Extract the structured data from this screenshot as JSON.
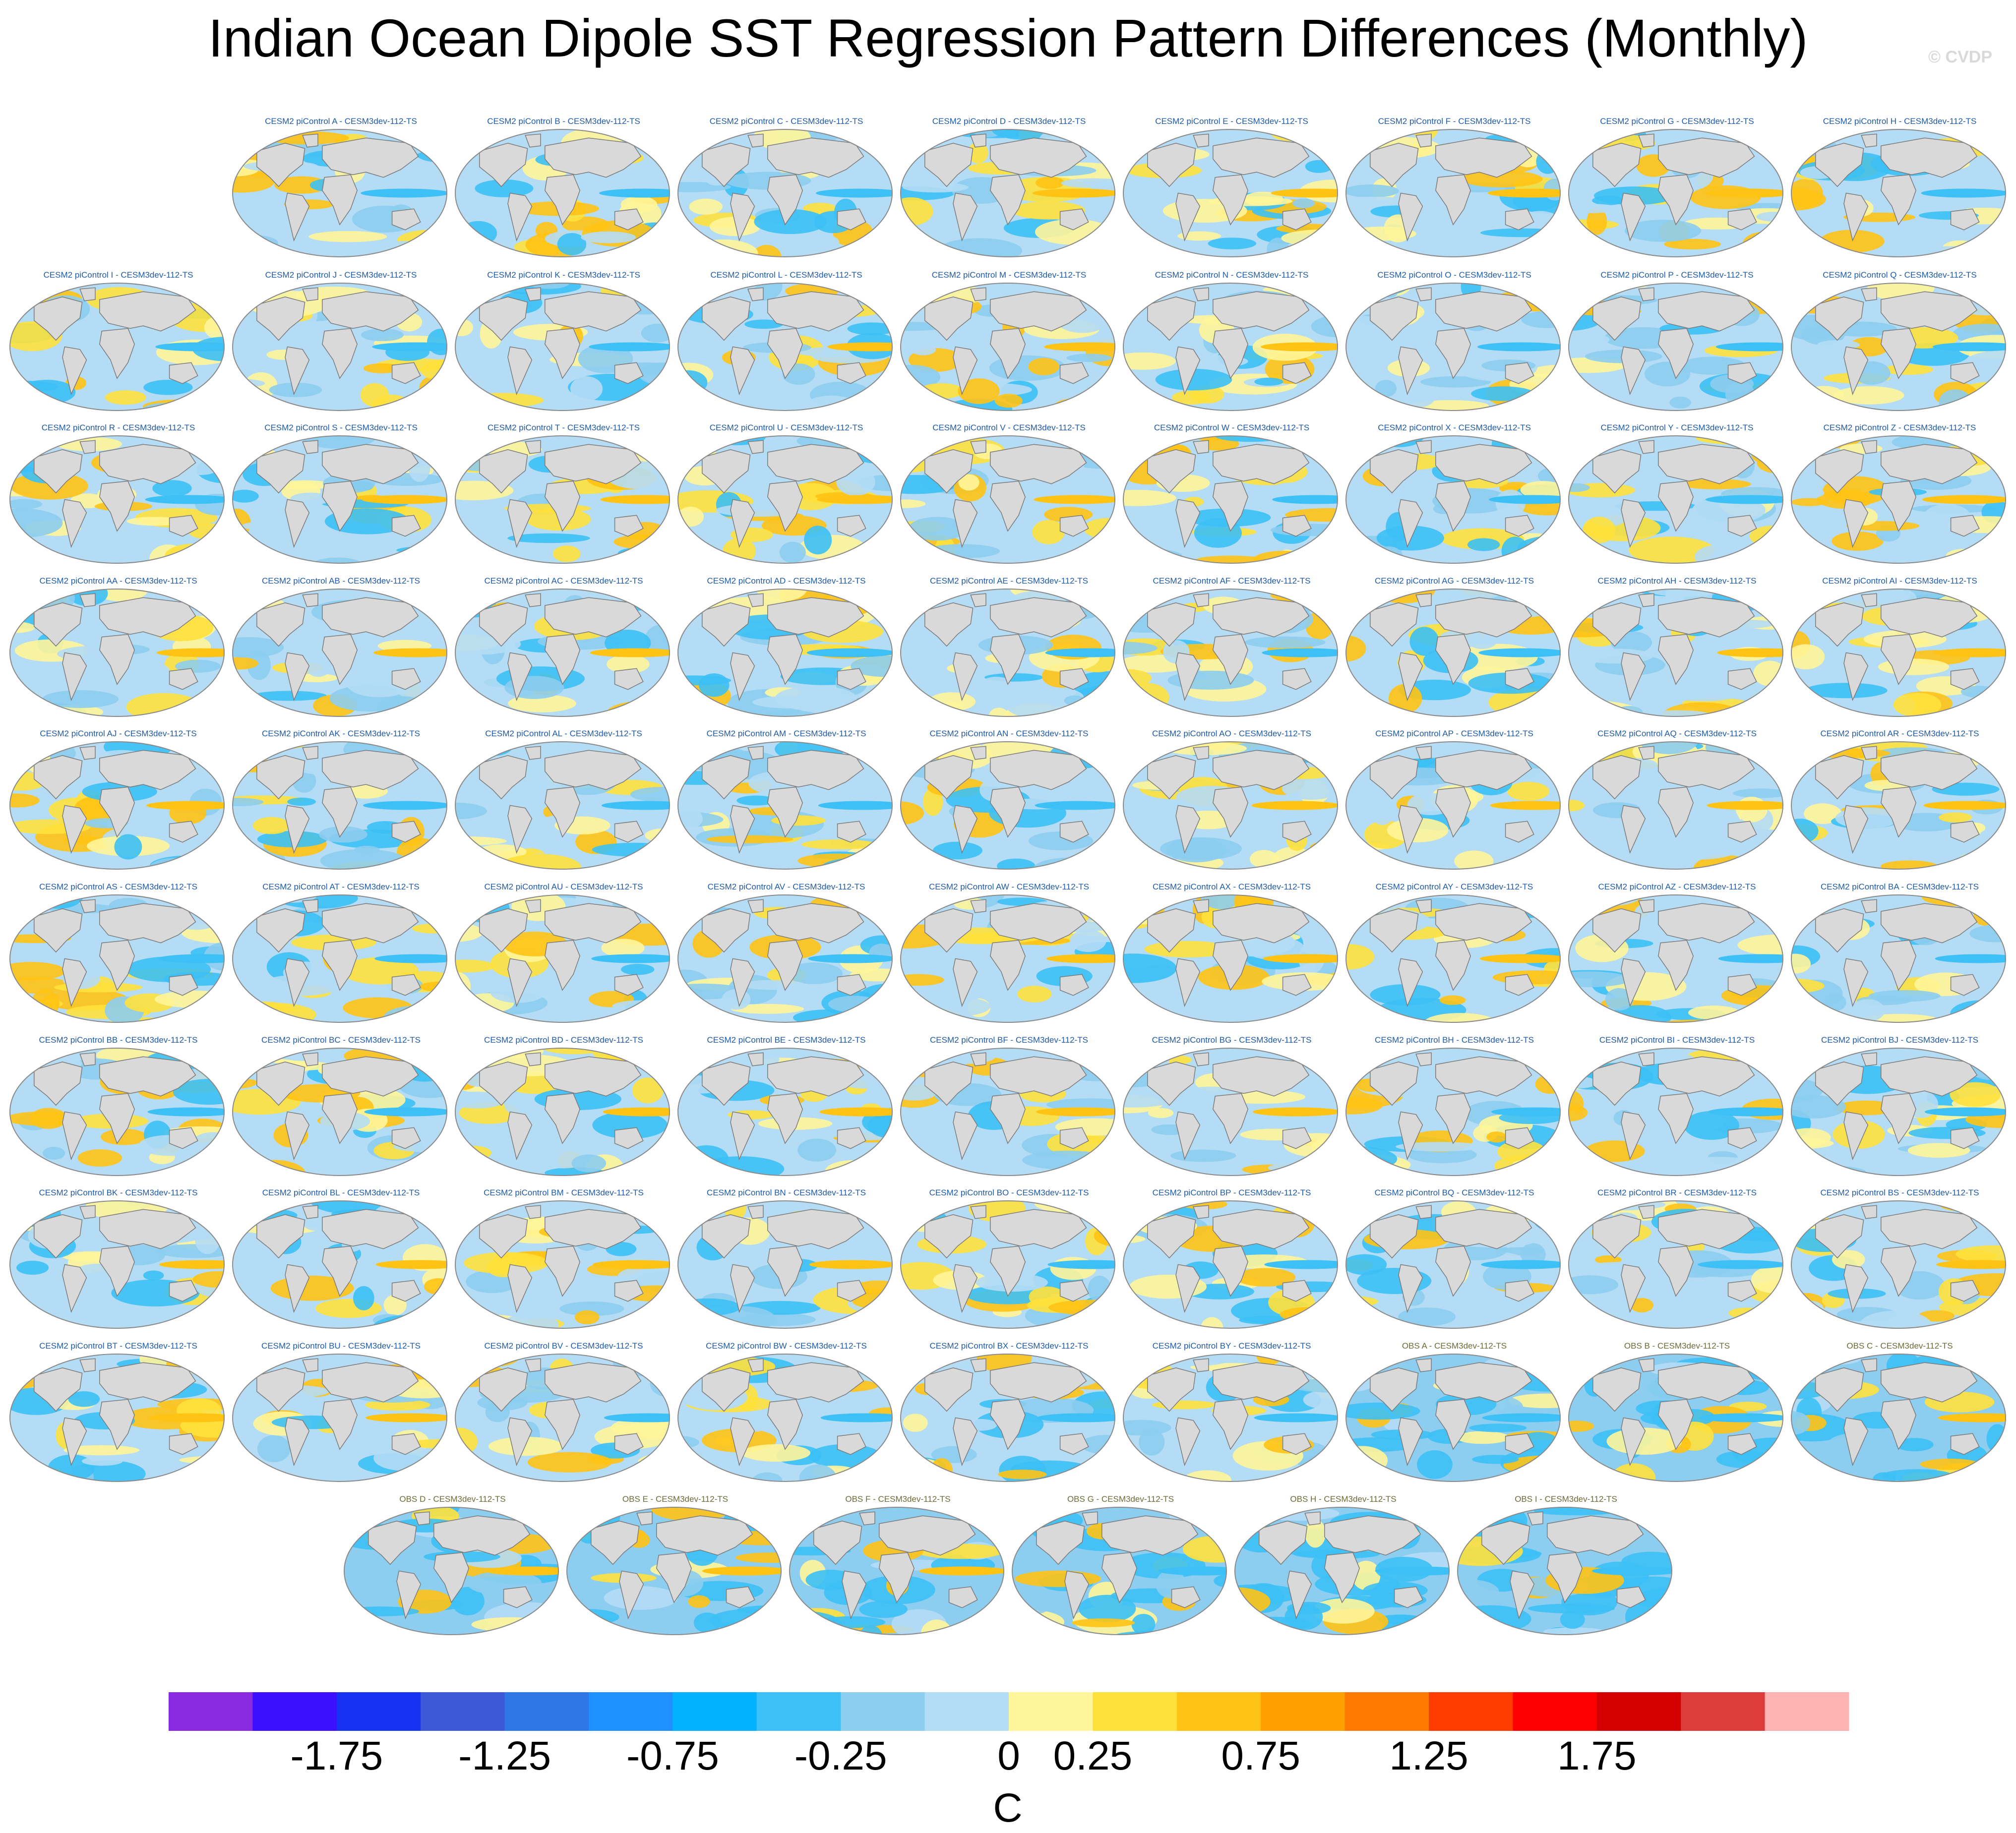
{
  "title": "Indian Ocean Dipole SST Regression Pattern Differences (Monthly)",
  "watermark": "© CVDP",
  "panel_suffix": " - CESM3dev-112-TS",
  "panels": [
    "CESM2 piControl A",
    "CESM2 piControl B",
    "CESM2 piControl C",
    "CESM2 piControl D",
    "CESM2 piControl E",
    "CESM2 piControl F",
    "CESM2 piControl G",
    "CESM2 piControl H",
    "CESM2 piControl I",
    "CESM2 piControl J",
    "CESM2 piControl K",
    "CESM2 piControl L",
    "CESM2 piControl M",
    "CESM2 piControl N",
    "CESM2 piControl O",
    "CESM2 piControl P",
    "CESM2 piControl Q",
    "CESM2 piControl R",
    "CESM2 piControl S",
    "CESM2 piControl T",
    "CESM2 piControl U",
    "CESM2 piControl V",
    "CESM2 piControl W",
    "CESM2 piControl X",
    "CESM2 piControl Y",
    "CESM2 piControl Z",
    "CESM2 piControl AA",
    "CESM2 piControl AB",
    "CESM2 piControl AC",
    "CESM2 piControl AD",
    "CESM2 piControl AE",
    "CESM2 piControl AF",
    "CESM2 piControl AG",
    "CESM2 piControl AH",
    "CESM2 piControl AI",
    "CESM2 piControl AJ",
    "CESM2 piControl AK",
    "CESM2 piControl AL",
    "CESM2 piControl AM",
    "CESM2 piControl AN",
    "CESM2 piControl AO",
    "CESM2 piControl AP",
    "CESM2 piControl AQ",
    "CESM2 piControl AR",
    "CESM2 piControl AS",
    "CESM2 piControl AT",
    "CESM2 piControl AU",
    "CESM2 piControl AV",
    "CESM2 piControl AW",
    "CESM2 piControl AX",
    "CESM2 piControl AY",
    "CESM2 piControl AZ",
    "CESM2 piControl BA",
    "CESM2 piControl BB",
    "CESM2 piControl BC",
    "CESM2 piControl BD",
    "CESM2 piControl BE",
    "CESM2 piControl BF",
    "CESM2 piControl BG",
    "CESM2 piControl BH",
    "CESM2 piControl BI",
    "CESM2 piControl BJ",
    "CESM2 piControl BK",
    "CESM2 piControl BL",
    "CESM2 piControl BM",
    "CESM2 piControl BN",
    "CESM2 piControl BO",
    "CESM2 piControl BP",
    "CESM2 piControl BQ",
    "CESM2 piControl BR",
    "CESM2 piControl BS",
    "CESM2 piControl BT",
    "CESM2 piControl BU",
    "CESM2 piControl BV",
    "CESM2 piControl BW",
    "CESM2 piControl BX",
    "CESM2 piControl BY",
    "OBS A",
    "OBS B",
    "OBS C",
    "OBS D",
    "OBS E",
    "OBS F",
    "OBS G",
    "OBS H",
    "OBS I"
  ],
  "colorbar": {
    "colors": [
      "#8a2be2",
      "#3a10ff",
      "#1432f0",
      "#3c5ad8",
      "#2d78e6",
      "#1e90ff",
      "#00b2ff",
      "#3cc0f5",
      "#8ccdf0",
      "#b4dcf5",
      "#fff59a",
      "#ffe13c",
      "#ffc314",
      "#ffa000",
      "#ff7800",
      "#ff3c00",
      "#ff0000",
      "#d20000",
      "#dc3c3c",
      "#ffb4b4"
    ],
    "tick_labels": [
      "-1.75",
      "-1.25",
      "-0.75",
      "-0.25",
      "0",
      "0.25",
      "0.75",
      "1.25",
      "1.75"
    ],
    "unit": "C"
  }
}
